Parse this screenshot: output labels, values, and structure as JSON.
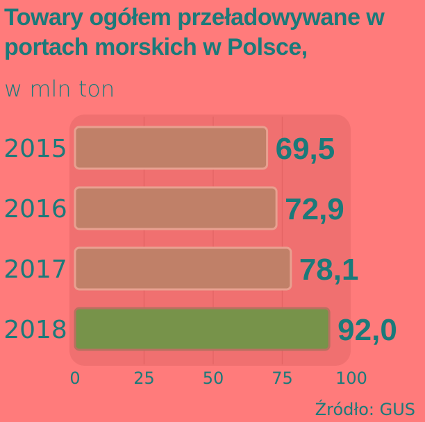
{
  "chart_data": {
    "type": "bar",
    "orientation": "horizontal",
    "title": "Towary ogółem przeładowywane w portach morskich w Polsce,",
    "subtitle": "w mln ton",
    "categories": [
      "2015",
      "2016",
      "2017",
      "2018"
    ],
    "values": [
      69.5,
      72.9,
      78.1,
      92.0
    ],
    "value_labels": [
      "69,5",
      "72,9",
      "78,1",
      "92,0"
    ],
    "xlim": [
      0,
      100
    ],
    "xticks": [
      0,
      25,
      50,
      75,
      100
    ],
    "grid": true,
    "colors": {
      "bar": "#c08068",
      "highlight_bar": "#77934a",
      "text": "#1b7a7a",
      "background": "#ff7b7b",
      "panel": "#f07070"
    },
    "highlight_index": 3
  },
  "source": "Źródło: GUS"
}
